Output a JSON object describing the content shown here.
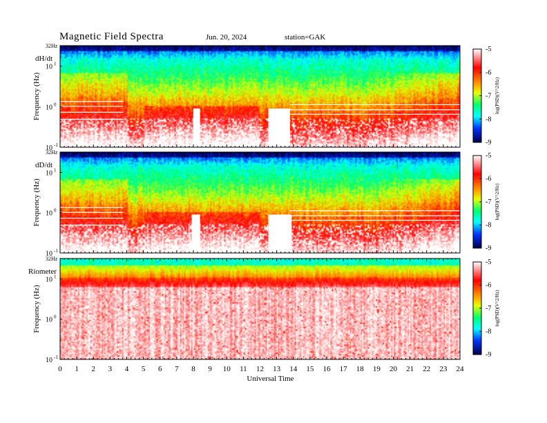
{
  "header": {
    "title": "Magnetic  Field  Spectra",
    "date": "Jun. 20, 2024",
    "station": "station=GAK"
  },
  "colors": {
    "scale_high": "#ff0000",
    "scale_mid": "#00ff80",
    "scale_low": "#00008b"
  },
  "chart_data": [
    {
      "type": "heatmap",
      "panel_label": "dH/dt",
      "ylabel": "Frequency  (Hz)",
      "y_top_label": "32Hz",
      "y_tick_labels": [
        "10",
        "10",
        "10"
      ],
      "y_tick_exps": [
        "1",
        "0",
        "-1"
      ],
      "y_scale": "log",
      "ylim": [
        0.1,
        32
      ],
      "xlim": [
        0,
        24
      ],
      "colorbar": {
        "label": "log(PSD)(V^2/Hz)",
        "min": -9,
        "max": -5,
        "ticks": [
          "-5",
          "-6",
          "-7",
          "-8",
          "-9"
        ]
      },
      "gaps": [
        [
          8.0,
          8.4
        ],
        [
          12.5,
          13.8
        ]
      ],
      "lines": [
        4.9,
        6.5,
        7.3,
        8.4,
        10.2,
        11.2,
        13.4
      ]
    },
    {
      "type": "heatmap",
      "panel_label": "dD/dt",
      "ylabel": "Frequency  (Hz)",
      "y_top_label": "32Hz",
      "y_tick_labels": [
        "10",
        "10",
        "10"
      ],
      "y_tick_exps": [
        "1",
        "0",
        "-1"
      ],
      "y_scale": "log",
      "ylim": [
        0.1,
        32
      ],
      "xlim": [
        0,
        24
      ],
      "colorbar": {
        "label": "log(PSD)(V^2/Hz)",
        "min": -9,
        "max": -5,
        "ticks": [
          "-5",
          "-6",
          "-7",
          "-8",
          "-9"
        ]
      },
      "gaps": [
        [
          7.9,
          8.4
        ],
        [
          12.5,
          13.9
        ]
      ],
      "lines": [
        4.9,
        6.5,
        7.3,
        8.4,
        10.2,
        11.2,
        13.4
      ]
    },
    {
      "type": "heatmap",
      "panel_label": "Riometer",
      "ylabel": "Frequency  (Hz)",
      "y_top_label": "32Hz",
      "y_tick_labels": [
        "10",
        "10",
        "10"
      ],
      "y_tick_exps": [
        "1",
        "0",
        "-1"
      ],
      "y_scale": "log",
      "ylim": [
        0.1,
        32
      ],
      "xlim": [
        0,
        24
      ],
      "colorbar": {
        "label": "log(PSD)(V^2/Hz)",
        "min": -9,
        "max": -5,
        "ticks": [
          "-5",
          "-6",
          "-7",
          "-8",
          "-9"
        ]
      },
      "gaps": [],
      "lines": []
    }
  ],
  "x_axis": {
    "label": "Universal  Time",
    "ticks": [
      "0",
      "1",
      "2",
      "3",
      "4",
      "5",
      "6",
      "7",
      "8",
      "9",
      "10",
      "11",
      "12",
      "13",
      "14",
      "15",
      "16",
      "17",
      "18",
      "19",
      "20",
      "21",
      "22",
      "23",
      "24"
    ]
  }
}
